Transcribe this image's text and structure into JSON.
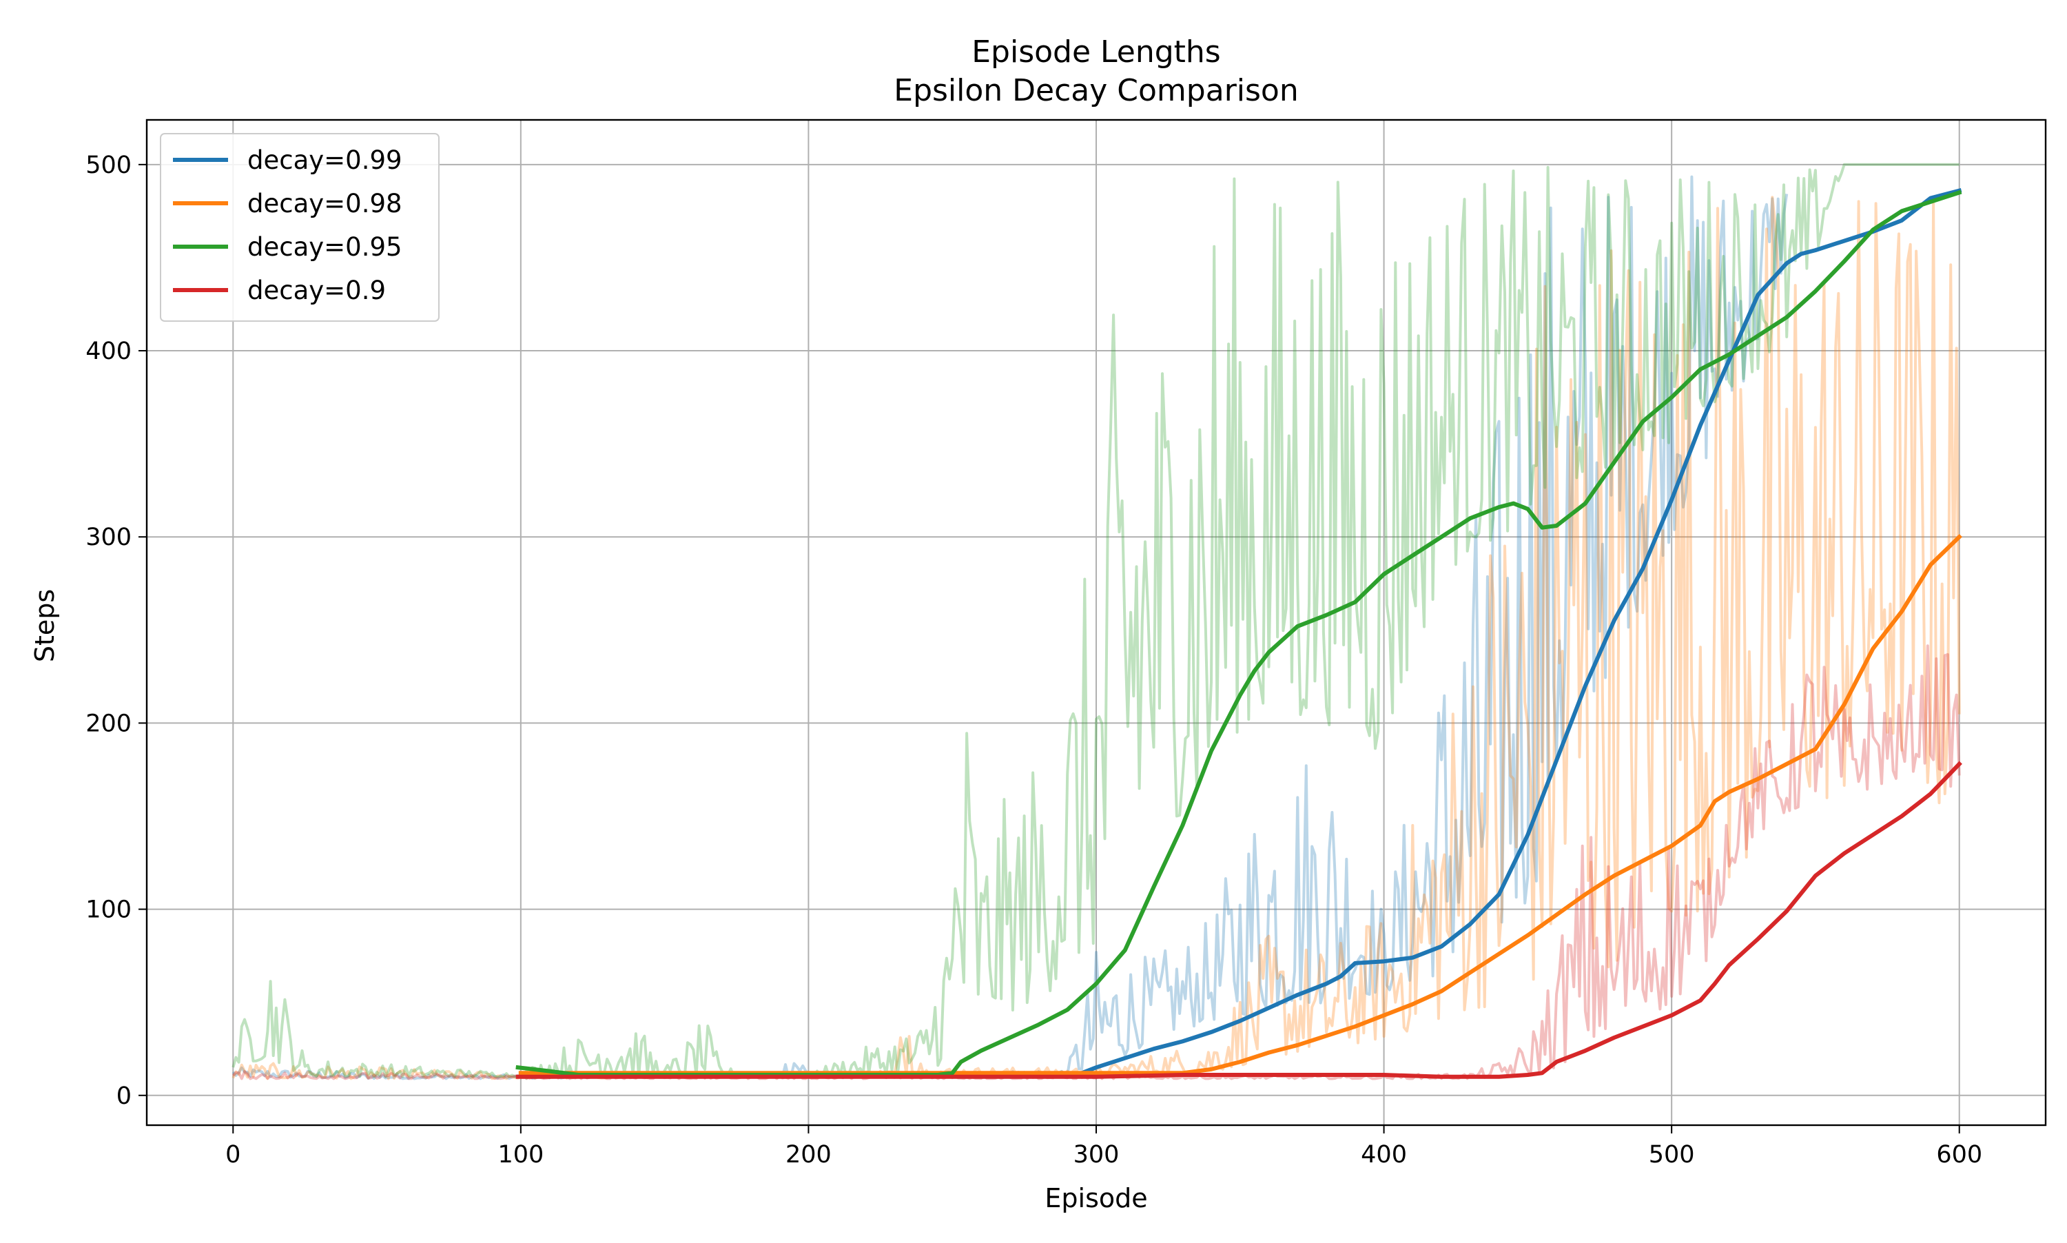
{
  "chart_data": {
    "type": "line",
    "title": "Episode Lengths",
    "subtitle": "Epsilon Decay Comparison",
    "xlabel": "Episode",
    "ylabel": "Steps",
    "xlim": [
      -30,
      630
    ],
    "ylim": [
      -16,
      524
    ],
    "xticks": [
      0,
      100,
      200,
      300,
      400,
      500,
      600
    ],
    "yticks": [
      0,
      100,
      200,
      300,
      400,
      500
    ],
    "grid": true,
    "legend_position": "top-left",
    "series": [
      {
        "name": "decay=0.99",
        "color": "#1f77b4",
        "smoothed": {
          "x": [
            295,
            300,
            310,
            320,
            330,
            340,
            350,
            360,
            370,
            380,
            385,
            390,
            400,
            410,
            420,
            430,
            440,
            450,
            460,
            470,
            480,
            490,
            500,
            510,
            520,
            530,
            540,
            545,
            550,
            560,
            570,
            580,
            590,
            600
          ],
          "y": [
            12,
            15,
            20,
            25,
            29,
            34,
            40,
            47,
            54,
            60,
            64,
            71,
            72,
            74,
            80,
            92,
            108,
            140,
            180,
            220,
            255,
            283,
            320,
            360,
            395,
            430,
            447,
            452,
            454,
            459,
            464,
            470,
            482,
            486
          ]
        },
        "raw_envelope": {
          "x": [
            0,
            50,
            100,
            150,
            190,
            195,
            200,
            250,
            290,
            300,
            320,
            340,
            360,
            380,
            400,
            420,
            440,
            450,
            470,
            500,
            530,
            540
          ],
          "lower": [
            10,
            9,
            9,
            10,
            10,
            10,
            11,
            11,
            11,
            12,
            30,
            40,
            45,
            50,
            55,
            65,
            80,
            100,
            200,
            300,
            400,
            450
          ],
          "upper": [
            15,
            12,
            11,
            12,
            12,
            32,
            12,
            12,
            14,
            80,
            75,
            95,
            190,
            200,
            100,
            245,
            380,
            500,
            500,
            500,
            500,
            500
          ]
        }
      },
      {
        "name": "decay=0.98",
        "color": "#ff7f0e",
        "smoothed": {
          "x": [
            100,
            200,
            300,
            330,
            340,
            350,
            360,
            370,
            380,
            390,
            400,
            410,
            420,
            430,
            440,
            450,
            460,
            470,
            480,
            490,
            500,
            510,
            515,
            520,
            530,
            540,
            550,
            560,
            570,
            580,
            590,
            600
          ],
          "y": [
            12,
            12,
            12,
            12,
            14,
            18,
            23,
            27,
            32,
            37,
            43,
            49,
            56,
            66,
            76,
            86,
            97,
            108,
            118,
            126,
            134,
            145,
            158,
            163,
            170,
            178,
            186,
            210,
            240,
            260,
            285,
            300
          ]
        },
        "raw_envelope": {
          "x": [
            0,
            100,
            200,
            230,
            236,
            240,
            300,
            340,
            360,
            380,
            400,
            420,
            440,
            460,
            480,
            500,
            520,
            540,
            560,
            580,
            600
          ],
          "lower": [
            9,
            9,
            10,
            11,
            11,
            11,
            11,
            12,
            20,
            25,
            30,
            40,
            50,
            60,
            70,
            90,
            110,
            150,
            160,
            180,
            135
          ],
          "upper": [
            18,
            12,
            12,
            14,
            78,
            15,
            15,
            30,
            90,
            80,
            100,
            200,
            350,
            500,
            500,
            500,
            500,
            500,
            500,
            500,
            500
          ]
        }
      },
      {
        "name": "decay=0.95",
        "color": "#2ca02c",
        "smoothed": {
          "x": [
            99,
            110,
            120,
            200,
            245,
            250,
            253,
            260,
            270,
            280,
            290,
            300,
            310,
            320,
            330,
            340,
            350,
            355,
            360,
            370,
            380,
            390,
            400,
            410,
            420,
            430,
            440,
            445,
            450,
            455,
            460,
            470,
            480,
            490,
            500,
            510,
            520,
            530,
            540,
            550,
            560,
            570,
            580,
            590,
            600
          ],
          "y": [
            15,
            13,
            11,
            11,
            11,
            12,
            18,
            24,
            31,
            38,
            46,
            60,
            78,
            112,
            145,
            185,
            215,
            228,
            238,
            252,
            258,
            265,
            280,
            290,
            300,
            310,
            316,
            318,
            315,
            305,
            306,
            318,
            340,
            362,
            375,
            390,
            398,
            408,
            418,
            432,
            448,
            465,
            475,
            480,
            485
          ]
        },
        "raw_envelope": {
          "x": [
            0,
            13,
            25,
            100,
            133,
            140,
            150,
            164,
            170,
            200,
            240,
            250,
            252,
            260,
            280,
            300,
            310,
            320,
            340,
            350,
            360,
            380,
            400,
            420,
            440,
            460,
            480,
            500,
            520,
            540,
            560,
            600
          ],
          "lower": [
            15,
            20,
            10,
            10,
            10,
            10,
            10,
            10,
            10,
            10,
            12,
            20,
            15,
            40,
            50,
            80,
            100,
            150,
            150,
            200,
            190,
            200,
            180,
            280,
            300,
            320,
            340,
            350,
            380,
            400,
            500,
            500
          ],
          "upper": [
            25,
            83,
            20,
            12,
            45,
            40,
            15,
            42,
            15,
            12,
            40,
            120,
            273,
            140,
            190,
            305,
            500,
            420,
            500,
            500,
            500,
            500,
            500,
            500,
            500,
            500,
            500,
            500,
            500,
            500,
            500,
            500
          ]
        }
      },
      {
        "name": "decay=0.9",
        "color": "#d62728",
        "smoothed": {
          "x": [
            99,
            200,
            300,
            330,
            400,
            420,
            440,
            450,
            455,
            460,
            470,
            480,
            490,
            500,
            510,
            515,
            520,
            530,
            540,
            550,
            560,
            570,
            580,
            590,
            600
          ],
          "y": [
            10,
            10,
            10,
            11,
            11,
            10,
            10,
            11,
            12,
            18,
            24,
            31,
            37,
            43,
            51,
            60,
            70,
            84,
            99,
            118,
            130,
            140,
            150,
            162,
            178
          ]
        },
        "raw_envelope": {
          "x": [
            0,
            100,
            200,
            300,
            400,
            430,
            440,
            450,
            460,
            470,
            480,
            490,
            500,
            510,
            515,
            520,
            530,
            540,
            550,
            560,
            570,
            580,
            590,
            600
          ],
          "lower": [
            9,
            9,
            9,
            9,
            9,
            9,
            10,
            10,
            15,
            25,
            30,
            40,
            50,
            60,
            90,
            120,
            140,
            150,
            160,
            160,
            165,
            170,
            180,
            160
          ],
          "upper": [
            13,
            11,
            11,
            11,
            11,
            12,
            18,
            30,
            80,
            150,
            130,
            140,
            150,
            140,
            120,
            180,
            190,
            200,
            260,
            210,
            230,
            210,
            250,
            230
          ]
        }
      }
    ]
  }
}
